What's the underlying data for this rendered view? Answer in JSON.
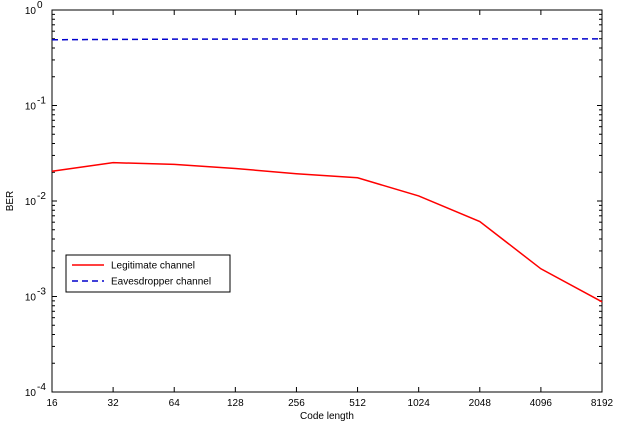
{
  "chart_data": {
    "type": "line",
    "xlabel": "Code length",
    "ylabel": "BER",
    "x_scale": "log2",
    "y_scale": "log",
    "x": [
      16,
      32,
      64,
      128,
      256,
      512,
      1024,
      2048,
      4096,
      8192
    ],
    "x_tick_labels": [
      "16",
      "32",
      "64",
      "128",
      "256",
      "512",
      "1024",
      "2048",
      "4096",
      "8192"
    ],
    "ylim": [
      0.0001,
      1
    ],
    "y_ticks": [
      {
        "value": 1,
        "base": "10",
        "exp": "0"
      },
      {
        "value": 0.1,
        "base": "10",
        "exp": "-1"
      },
      {
        "value": 0.01,
        "base": "10",
        "exp": "-2"
      },
      {
        "value": 0.001,
        "base": "10",
        "exp": "-3"
      },
      {
        "value": 0.0001,
        "base": "10",
        "exp": "-4"
      }
    ],
    "grid": false,
    "legend_position": "middle-left",
    "series": [
      {
        "name": "Legitimate channel",
        "color": "#ff0000",
        "style": "solid",
        "values": [
          0.0205,
          0.0252,
          0.0242,
          0.0219,
          0.0193,
          0.0175,
          0.0113,
          0.0061,
          0.00195,
          0.00088
        ]
      },
      {
        "name": "Eavesdropper channel",
        "color": "#0000cc",
        "style": "dashed",
        "values": [
          0.488,
          0.492,
          0.495,
          0.496,
          0.497,
          0.497,
          0.498,
          0.498,
          0.498,
          0.498
        ]
      }
    ]
  }
}
